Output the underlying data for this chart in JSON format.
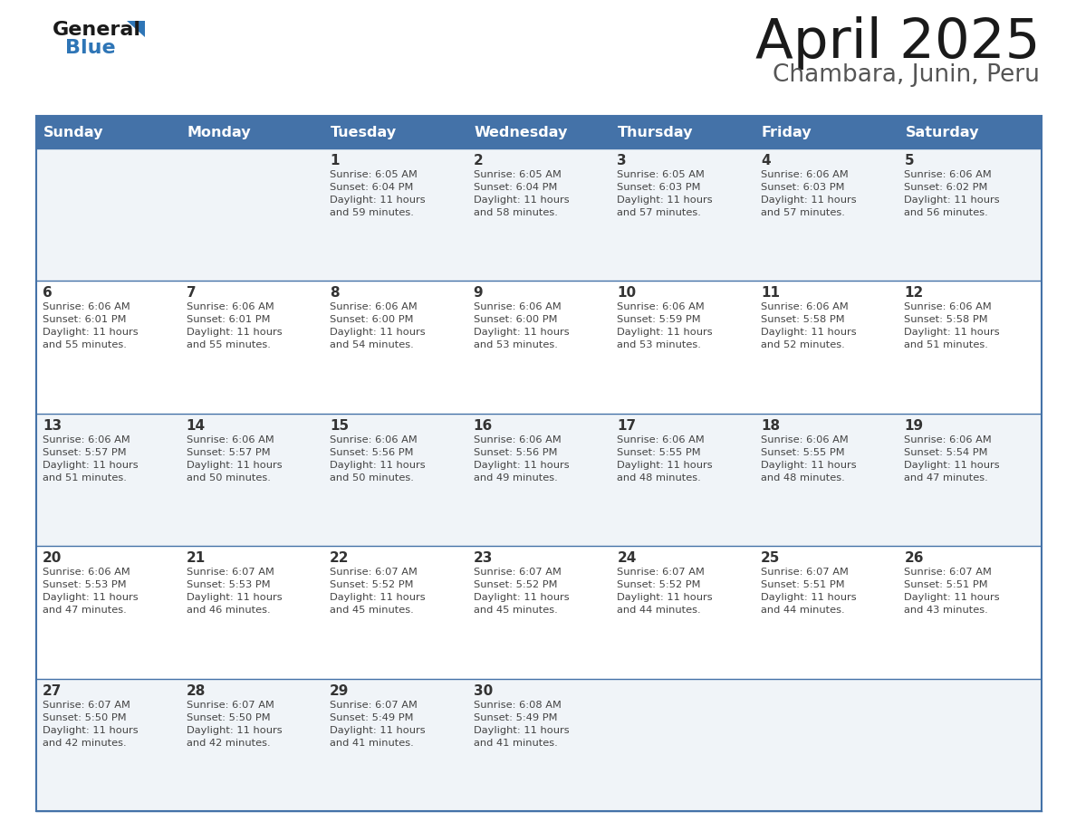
{
  "title": "April 2025",
  "subtitle": "Chambara, Junin, Peru",
  "header_bg": "#4472A8",
  "header_text_color": "#FFFFFF",
  "cell_bg_light": "#F0F4F8",
  "cell_bg_white": "#FFFFFF",
  "day_text_color": "#333333",
  "sun_text_color": "#444444",
  "border_color": "#4472A8",
  "days_of_week": [
    "Sunday",
    "Monday",
    "Tuesday",
    "Wednesday",
    "Thursday",
    "Friday",
    "Saturday"
  ],
  "weeks": [
    [
      {
        "day": "",
        "sunrise": "",
        "sunset": "",
        "daylight": ""
      },
      {
        "day": "",
        "sunrise": "",
        "sunset": "",
        "daylight": ""
      },
      {
        "day": "1",
        "sunrise": "Sunrise: 6:05 AM",
        "sunset": "Sunset: 6:04 PM",
        "daylight": "Daylight: 11 hours\nand 59 minutes."
      },
      {
        "day": "2",
        "sunrise": "Sunrise: 6:05 AM",
        "sunset": "Sunset: 6:04 PM",
        "daylight": "Daylight: 11 hours\nand 58 minutes."
      },
      {
        "day": "3",
        "sunrise": "Sunrise: 6:05 AM",
        "sunset": "Sunset: 6:03 PM",
        "daylight": "Daylight: 11 hours\nand 57 minutes."
      },
      {
        "day": "4",
        "sunrise": "Sunrise: 6:06 AM",
        "sunset": "Sunset: 6:03 PM",
        "daylight": "Daylight: 11 hours\nand 57 minutes."
      },
      {
        "day": "5",
        "sunrise": "Sunrise: 6:06 AM",
        "sunset": "Sunset: 6:02 PM",
        "daylight": "Daylight: 11 hours\nand 56 minutes."
      }
    ],
    [
      {
        "day": "6",
        "sunrise": "Sunrise: 6:06 AM",
        "sunset": "Sunset: 6:01 PM",
        "daylight": "Daylight: 11 hours\nand 55 minutes."
      },
      {
        "day": "7",
        "sunrise": "Sunrise: 6:06 AM",
        "sunset": "Sunset: 6:01 PM",
        "daylight": "Daylight: 11 hours\nand 55 minutes."
      },
      {
        "day": "8",
        "sunrise": "Sunrise: 6:06 AM",
        "sunset": "Sunset: 6:00 PM",
        "daylight": "Daylight: 11 hours\nand 54 minutes."
      },
      {
        "day": "9",
        "sunrise": "Sunrise: 6:06 AM",
        "sunset": "Sunset: 6:00 PM",
        "daylight": "Daylight: 11 hours\nand 53 minutes."
      },
      {
        "day": "10",
        "sunrise": "Sunrise: 6:06 AM",
        "sunset": "Sunset: 5:59 PM",
        "daylight": "Daylight: 11 hours\nand 53 minutes."
      },
      {
        "day": "11",
        "sunrise": "Sunrise: 6:06 AM",
        "sunset": "Sunset: 5:58 PM",
        "daylight": "Daylight: 11 hours\nand 52 minutes."
      },
      {
        "day": "12",
        "sunrise": "Sunrise: 6:06 AM",
        "sunset": "Sunset: 5:58 PM",
        "daylight": "Daylight: 11 hours\nand 51 minutes."
      }
    ],
    [
      {
        "day": "13",
        "sunrise": "Sunrise: 6:06 AM",
        "sunset": "Sunset: 5:57 PM",
        "daylight": "Daylight: 11 hours\nand 51 minutes."
      },
      {
        "day": "14",
        "sunrise": "Sunrise: 6:06 AM",
        "sunset": "Sunset: 5:57 PM",
        "daylight": "Daylight: 11 hours\nand 50 minutes."
      },
      {
        "day": "15",
        "sunrise": "Sunrise: 6:06 AM",
        "sunset": "Sunset: 5:56 PM",
        "daylight": "Daylight: 11 hours\nand 50 minutes."
      },
      {
        "day": "16",
        "sunrise": "Sunrise: 6:06 AM",
        "sunset": "Sunset: 5:56 PM",
        "daylight": "Daylight: 11 hours\nand 49 minutes."
      },
      {
        "day": "17",
        "sunrise": "Sunrise: 6:06 AM",
        "sunset": "Sunset: 5:55 PM",
        "daylight": "Daylight: 11 hours\nand 48 minutes."
      },
      {
        "day": "18",
        "sunrise": "Sunrise: 6:06 AM",
        "sunset": "Sunset: 5:55 PM",
        "daylight": "Daylight: 11 hours\nand 48 minutes."
      },
      {
        "day": "19",
        "sunrise": "Sunrise: 6:06 AM",
        "sunset": "Sunset: 5:54 PM",
        "daylight": "Daylight: 11 hours\nand 47 minutes."
      }
    ],
    [
      {
        "day": "20",
        "sunrise": "Sunrise: 6:06 AM",
        "sunset": "Sunset: 5:53 PM",
        "daylight": "Daylight: 11 hours\nand 47 minutes."
      },
      {
        "day": "21",
        "sunrise": "Sunrise: 6:07 AM",
        "sunset": "Sunset: 5:53 PM",
        "daylight": "Daylight: 11 hours\nand 46 minutes."
      },
      {
        "day": "22",
        "sunrise": "Sunrise: 6:07 AM",
        "sunset": "Sunset: 5:52 PM",
        "daylight": "Daylight: 11 hours\nand 45 minutes."
      },
      {
        "day": "23",
        "sunrise": "Sunrise: 6:07 AM",
        "sunset": "Sunset: 5:52 PM",
        "daylight": "Daylight: 11 hours\nand 45 minutes."
      },
      {
        "day": "24",
        "sunrise": "Sunrise: 6:07 AM",
        "sunset": "Sunset: 5:52 PM",
        "daylight": "Daylight: 11 hours\nand 44 minutes."
      },
      {
        "day": "25",
        "sunrise": "Sunrise: 6:07 AM",
        "sunset": "Sunset: 5:51 PM",
        "daylight": "Daylight: 11 hours\nand 44 minutes."
      },
      {
        "day": "26",
        "sunrise": "Sunrise: 6:07 AM",
        "sunset": "Sunset: 5:51 PM",
        "daylight": "Daylight: 11 hours\nand 43 minutes."
      }
    ],
    [
      {
        "day": "27",
        "sunrise": "Sunrise: 6:07 AM",
        "sunset": "Sunset: 5:50 PM",
        "daylight": "Daylight: 11 hours\nand 42 minutes."
      },
      {
        "day": "28",
        "sunrise": "Sunrise: 6:07 AM",
        "sunset": "Sunset: 5:50 PM",
        "daylight": "Daylight: 11 hours\nand 42 minutes."
      },
      {
        "day": "29",
        "sunrise": "Sunrise: 6:07 AM",
        "sunset": "Sunset: 5:49 PM",
        "daylight": "Daylight: 11 hours\nand 41 minutes."
      },
      {
        "day": "30",
        "sunrise": "Sunrise: 6:08 AM",
        "sunset": "Sunset: 5:49 PM",
        "daylight": "Daylight: 11 hours\nand 41 minutes."
      },
      {
        "day": "",
        "sunrise": "",
        "sunset": "",
        "daylight": ""
      },
      {
        "day": "",
        "sunrise": "",
        "sunset": "",
        "daylight": ""
      },
      {
        "day": "",
        "sunrise": "",
        "sunset": "",
        "daylight": ""
      }
    ]
  ],
  "logo_general_color": "#1a1a1a",
  "logo_blue_color": "#2E75B6",
  "logo_triangle_color": "#2E75B6",
  "title_color": "#1a1a1a",
  "subtitle_color": "#555555"
}
